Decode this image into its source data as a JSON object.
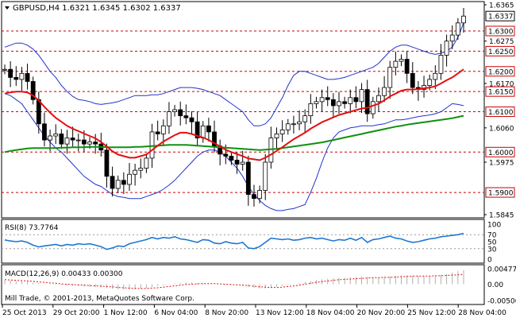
{
  "header": {
    "symbol_line": "GBPUSD,H4  1.6321 1.6345 1.6302 1.6337",
    "dropdown_icon": "triangle-down-icon"
  },
  "main_panel": {
    "price_ticks": [
      {
        "label": "1.6365",
        "value": 1.6365
      },
      {
        "label": "1.6275",
        "value": 1.6275
      },
      {
        "label": "1.6170",
        "value": 1.617
      },
      {
        "label": "1.6060",
        "value": 1.606
      },
      {
        "label": "1.5975",
        "value": 1.5975
      },
      {
        "label": "1.5845",
        "value": 1.5845
      }
    ],
    "level_lines": [
      {
        "label": "1.6300",
        "value": 1.63
      },
      {
        "label": "1.6250",
        "value": 1.625
      },
      {
        "label": "1.6200",
        "value": 1.62
      },
      {
        "label": "1.6150",
        "value": 1.615
      },
      {
        "label": "1.6100",
        "value": 1.61
      },
      {
        "label": "1.6000",
        "value": 1.6
      },
      {
        "label": "1.5900",
        "value": 1.59
      }
    ],
    "current_price": {
      "label": "1.6337",
      "value": 1.6337
    },
    "colors": {
      "level": "#cc0000",
      "ma_fast": "#e31010",
      "ma_slow": "#109010",
      "bands": "#2233cc",
      "candles": "#000000"
    }
  },
  "rsi_panel": {
    "label": "RSI(8) 73.7764",
    "ticks": [
      {
        "label": "100",
        "value": 100
      },
      {
        "label": "70",
        "value": 70
      },
      {
        "label": "50",
        "value": 50
      },
      {
        "label": "30",
        "value": 30
      },
      {
        "label": "0",
        "value": 0
      }
    ],
    "color": "#1e78d2"
  },
  "macd_panel": {
    "label": "MACD(12,26,9) 0.00433 0.00300",
    "ticks": [
      {
        "label": "0.00477",
        "value": 0.00477
      },
      {
        "label": "0.00",
        "value": 0
      },
      {
        "label": "-0.00500",
        "value": -0.005
      }
    ]
  },
  "copyright": "Mill Trade, © 2001-2013, MetaQuotes Software Corp.",
  "time_axis": [
    "25 Oct 2013",
    "29 Oct 20:00",
    "1 Nov 12:00",
    "6 Nov 04:00",
    "8 Nov 20:00",
    "13 Nov 12:00",
    "18 Nov 04:00",
    "20 Nov 20:00",
    "25 Nov 12:00",
    "28 Nov 04:00"
  ],
  "chart_data": {
    "type": "candlestick",
    "symbol": "GBPUSD",
    "timeframe": "H4",
    "ohlc_last": {
      "open": 1.6321,
      "high": 1.6345,
      "low": 1.6302,
      "close": 1.6337
    },
    "price_range": [
      1.5845,
      1.6365
    ],
    "closes": [
      1.6205,
      1.6185,
      1.618,
      1.6195,
      1.6175,
      1.613,
      1.607,
      1.603,
      1.604,
      1.6045,
      1.602,
      1.6035,
      1.603,
      1.603,
      1.602,
      1.6025,
      1.602,
      1.6005,
      1.594,
      1.591,
      1.593,
      1.592,
      1.5945,
      1.5955,
      1.596,
      1.5985,
      1.605,
      1.6045,
      1.6065,
      1.61,
      1.6105,
      1.609,
      1.6085,
      1.6075,
      1.6035,
      1.6065,
      1.605,
      1.6015,
      1.5995,
      1.599,
      1.598,
      1.597,
      1.5975,
      1.5895,
      1.5885,
      1.5905,
      1.5975,
      1.6035,
      1.6045,
      1.6055,
      1.607,
      1.607,
      1.6075,
      1.609,
      1.612,
      1.6125,
      1.6135,
      1.613,
      1.6115,
      1.6125,
      1.612,
      1.6135,
      1.6125,
      1.6155,
      1.6095,
      1.6125,
      1.614,
      1.616,
      1.621,
      1.6225,
      1.623,
      1.6195,
      1.616,
      1.6155,
      1.6165,
      1.618,
      1.6195,
      1.624,
      1.6275,
      1.629,
      1.632,
      1.6337
    ],
    "ma_fast": [
      1.6145,
      1.6148,
      1.615,
      1.615,
      1.6148,
      1.614,
      1.6128,
      1.6112,
      1.6098,
      1.6085,
      1.6075,
      1.6065,
      1.6058,
      1.6052,
      1.6046,
      1.604,
      1.6034,
      1.6025,
      1.6014,
      1.6002,
      1.5994,
      1.599,
      1.5986,
      1.5986,
      1.599,
      1.5994,
      1.6005,
      1.6016,
      1.6026,
      1.6034,
      1.6042,
      1.6048,
      1.6048,
      1.6045,
      1.604,
      1.6036,
      1.603,
      1.6022,
      1.6014,
      1.6006,
      1.6,
      1.5995,
      1.599,
      1.5984,
      1.5982,
      1.598,
      1.5986,
      1.5994,
      1.6003,
      1.6012,
      1.6022,
      1.6032,
      1.604,
      1.6048,
      1.6058,
      1.6066,
      1.6074,
      1.608,
      1.6086,
      1.6092,
      1.6096,
      1.61,
      1.6104,
      1.6108,
      1.611,
      1.6115,
      1.612,
      1.6128,
      1.6138,
      1.6145,
      1.6152,
      1.6155,
      1.6155,
      1.6156,
      1.6158,
      1.616,
      1.6163,
      1.617,
      1.6178,
      1.6185,
      1.6195,
      1.6205
    ],
    "ma_slow": [
      1.6,
      1.6003,
      1.6005,
      1.6007,
      1.6009,
      1.601,
      1.601,
      1.601,
      1.601,
      1.601,
      1.6011,
      1.6011,
      1.6012,
      1.6012,
      1.6012,
      1.6013,
      1.6013,
      1.6013,
      1.6012,
      1.6012,
      1.6012,
      1.6012,
      1.6012,
      1.6013,
      1.6013,
      1.6014,
      1.6015,
      1.6016,
      1.6017,
      1.6018,
      1.6018,
      1.6018,
      1.6018,
      1.6017,
      1.6016,
      1.6015,
      1.6014,
      1.6013,
      1.6012,
      1.6011,
      1.601,
      1.6009,
      1.6008,
      1.6007,
      1.6006,
      1.6005,
      1.6006,
      1.6007,
      1.6008,
      1.601,
      1.6012,
      1.6014,
      1.6016,
      1.6018,
      1.602,
      1.6022,
      1.6024,
      1.6027,
      1.603,
      1.6033,
      1.6036,
      1.6039,
      1.6042,
      1.6045,
      1.6048,
      1.6051,
      1.6054,
      1.6057,
      1.606,
      1.6063,
      1.6065,
      1.6068,
      1.607,
      1.6072,
      1.6074,
      1.6076,
      1.6078,
      1.608,
      1.6082,
      1.6084,
      1.6087,
      1.609
    ],
    "band_upper": [
      1.626,
      1.6265,
      1.627,
      1.627,
      1.6265,
      1.6255,
      1.624,
      1.622,
      1.62,
      1.6185,
      1.6165,
      1.615,
      1.6138,
      1.613,
      1.6128,
      1.6125,
      1.612,
      1.6118,
      1.612,
      1.6122,
      1.6125,
      1.613,
      1.6135,
      1.614,
      1.614,
      1.614,
      1.6142,
      1.6142,
      1.6145,
      1.615,
      1.6155,
      1.616,
      1.616,
      1.616,
      1.6158,
      1.6155,
      1.615,
      1.6145,
      1.614,
      1.613,
      1.612,
      1.611,
      1.61,
      1.608,
      1.6065,
      1.6065,
      1.607,
      1.6085,
      1.611,
      1.6135,
      1.6165,
      1.619,
      1.62,
      1.62,
      1.6195,
      1.619,
      1.6185,
      1.618,
      1.618,
      1.6182,
      1.6185,
      1.619,
      1.6195,
      1.62,
      1.6205,
      1.621,
      1.622,
      1.6235,
      1.625,
      1.626,
      1.6265,
      1.6265,
      1.626,
      1.6255,
      1.625,
      1.6245,
      1.6242,
      1.6245,
      1.625,
      1.626,
      1.6285,
      1.632
    ],
    "band_lower": [
      1.6145,
      1.614,
      1.613,
      1.612,
      1.61,
      1.608,
      1.606,
      1.604,
      1.6025,
      1.601,
      1.6,
      1.5985,
      1.597,
      1.5955,
      1.594,
      1.593,
      1.592,
      1.5915,
      1.5905,
      1.5895,
      1.589,
      1.5888,
      1.5885,
      1.5885,
      1.5885,
      1.589,
      1.5895,
      1.59,
      1.5908,
      1.5918,
      1.593,
      1.5945,
      1.596,
      1.5975,
      1.599,
      1.6,
      1.6005,
      1.6005,
      1.6,
      1.599,
      1.5975,
      1.596,
      1.594,
      1.5915,
      1.5895,
      1.588,
      1.5868,
      1.586,
      1.5855,
      1.5855,
      1.5858,
      1.586,
      1.5865,
      1.587,
      1.59,
      1.5935,
      1.5975,
      1.601,
      1.6035,
      1.605,
      1.6055,
      1.606,
      1.6062,
      1.6065,
      1.6065,
      1.6065,
      1.6068,
      1.607,
      1.6075,
      1.608,
      1.608,
      1.6082,
      1.6085,
      1.6088,
      1.609,
      1.6092,
      1.6095,
      1.61,
      1.611,
      1.612,
      1.6118,
      1.6115
    ],
    "rsi": [
      55,
      52,
      50,
      52,
      48,
      40,
      35,
      38,
      40,
      42,
      38,
      42,
      40,
      44,
      42,
      44,
      40,
      36,
      28,
      32,
      38,
      36,
      44,
      48,
      52,
      56,
      62,
      58,
      62,
      60,
      64,
      58,
      56,
      52,
      48,
      56,
      54,
      46,
      44,
      50,
      46,
      44,
      48,
      32,
      30,
      36,
      48,
      60,
      58,
      56,
      58,
      54,
      56,
      60,
      62,
      58,
      60,
      56,
      52,
      56,
      54,
      60,
      54,
      62,
      48,
      56,
      58,
      62,
      66,
      60,
      58,
      52,
      48,
      50,
      54,
      58,
      60,
      64,
      66,
      68,
      70,
      73.78
    ],
    "macd_hist": [
      0.0012,
      0.0011,
      0.001,
      0.0009,
      0.0007,
      0.0005,
      0.0003,
      0.0001,
      -0.0001,
      -0.0002,
      -0.0003,
      -0.0004,
      -0.0005,
      -0.0006,
      -0.0007,
      -0.0008,
      -0.0009,
      -0.001,
      -0.0012,
      -0.0014,
      -0.0016,
      -0.0017,
      -0.0017,
      -0.0016,
      -0.0014,
      -0.0012,
      -0.0009,
      -0.0006,
      -0.0003,
      0,
      0.0002,
      0.0004,
      0.0005,
      0.0005,
      0.0004,
      0.0003,
      0.0002,
      0.0001,
      0,
      -0.0001,
      -0.0002,
      -0.0003,
      -0.0005,
      -0.0008,
      -0.0011,
      -0.0013,
      -0.0013,
      -0.0011,
      -0.0008,
      -0.0005,
      -0.0002,
      0.0001,
      0.0004,
      0.0007,
      0.001,
      0.0013,
      0.0015,
      0.0017,
      0.0018,
      0.0019,
      0.002,
      0.0021,
      0.0022,
      0.0023,
      0.0022,
      0.0021,
      0.0021,
      0.0022,
      0.0024,
      0.0026,
      0.0027,
      0.0027,
      0.0026,
      0.0025,
      0.0025,
      0.0026,
      0.0027,
      0.0029,
      0.0032,
      0.0036,
      0.004,
      0.0043
    ],
    "macd_signal": [
      0.0014,
      0.0013,
      0.0012,
      0.0011,
      0.001,
      0.0009,
      0.0007,
      0.0006,
      0.0004,
      0.0003,
      0.0001,
      0,
      -0.0001,
      -0.0002,
      -0.0003,
      -0.0004,
      -0.0005,
      -0.0006,
      -0.0007,
      -0.0008,
      -0.001,
      -0.0011,
      -0.0012,
      -0.0013,
      -0.0013,
      -0.0013,
      -0.0012,
      -0.0011,
      -0.0009,
      -0.0007,
      -0.0005,
      -0.0003,
      -0.0001,
      0,
      0.0001,
      0.0002,
      0.0002,
      0.0002,
      0.0001,
      0,
      -0.0001,
      -0.0002,
      -0.0003,
      -0.0004,
      -0.0006,
      -0.0008,
      -0.0009,
      -0.001,
      -0.001,
      -0.0009,
      -0.0007,
      -0.0005,
      -0.0003,
      0,
      0.0003,
      0.0006,
      0.0008,
      0.001,
      0.0012,
      0.0014,
      0.0015,
      0.0016,
      0.0017,
      0.0018,
      0.0019,
      0.002,
      0.002,
      0.0021,
      0.0021,
      0.0022,
      0.0023,
      0.0024,
      0.0025,
      0.0025,
      0.0025,
      0.0025,
      0.0026,
      0.0026,
      0.0027,
      0.0028,
      0.0029,
      0.003
    ]
  }
}
